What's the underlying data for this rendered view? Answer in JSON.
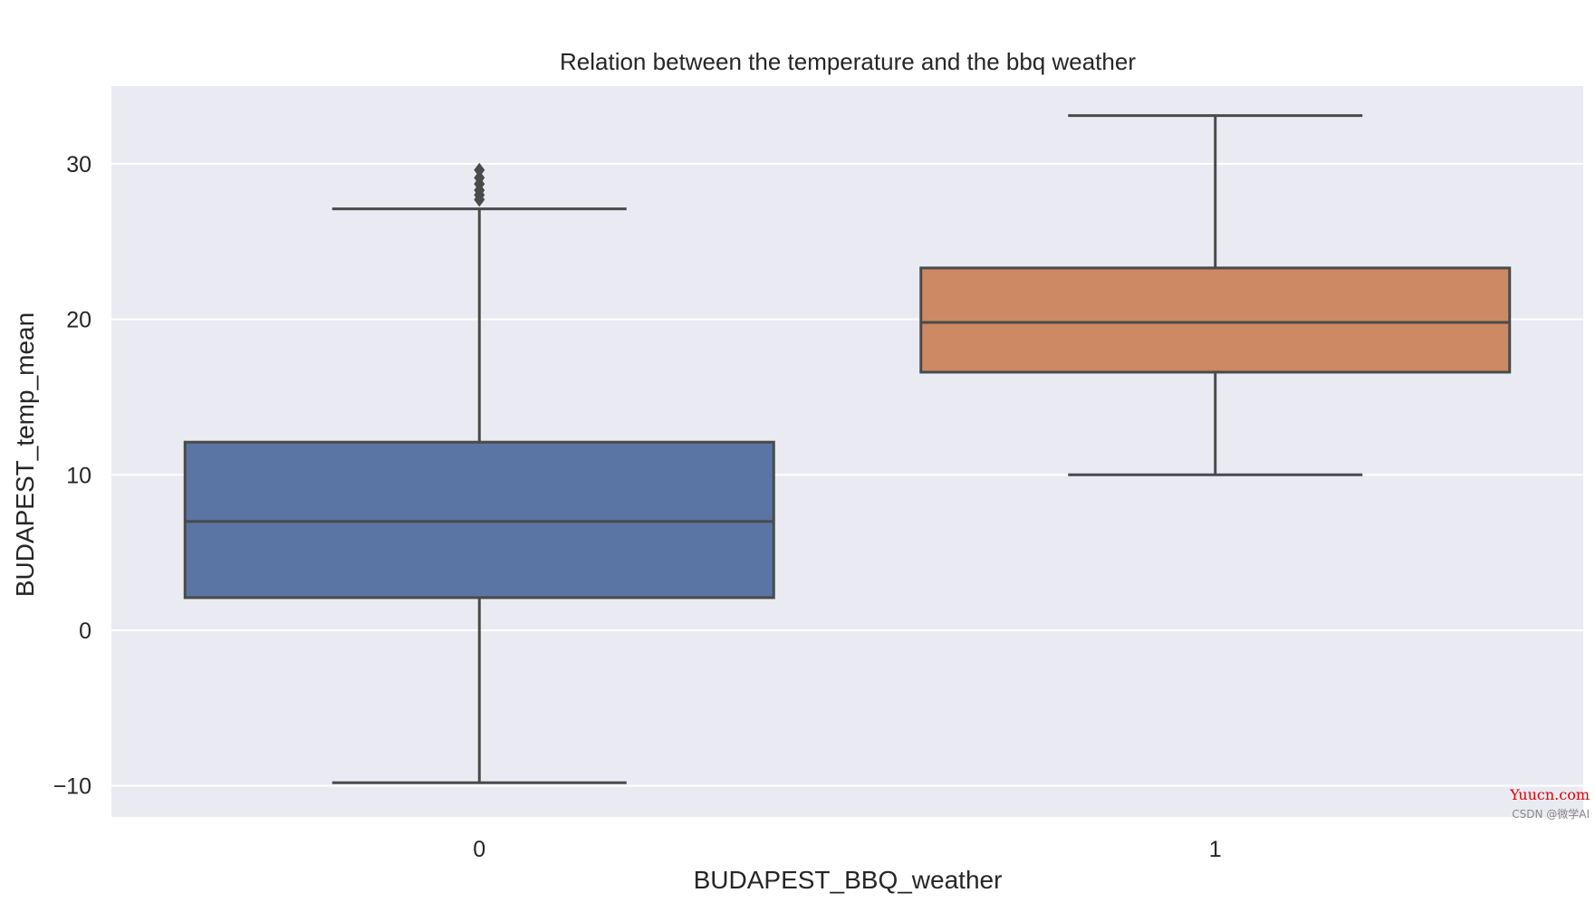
{
  "chart_data": {
    "type": "box",
    "title": "Relation between the temperature and the bbq weather",
    "xlabel": "BUDAPEST_BBQ_weather",
    "ylabel": "BUDAPEST_temp_mean",
    "categories": [
      "0",
      "1"
    ],
    "ylim": [
      -12,
      35
    ],
    "yticks": [
      -10,
      0,
      10,
      20,
      30
    ],
    "ytick_labels": [
      "−10",
      "0",
      "10",
      "20",
      "30"
    ],
    "grid": true,
    "boxes": [
      {
        "category": "0",
        "whisker_low": -9.8,
        "q1": 2.1,
        "median": 7.0,
        "q3": 12.1,
        "whisker_high": 27.1,
        "outliers": [
          27.7,
          28.0,
          28.3,
          28.7,
          29.1,
          29.6
        ],
        "color": "#5a74a4"
      },
      {
        "category": "1",
        "whisker_low": 10.0,
        "q1": 16.6,
        "median": 19.8,
        "q3": 23.3,
        "whisker_high": 33.1,
        "outliers": [],
        "color": "#cc8963"
      }
    ],
    "colors": {
      "background": "#eaeaf2",
      "grid": "#ffffff",
      "line": "#4a4a4a"
    }
  },
  "watermark": {
    "site": "Yuucn.com",
    "credit": "CSDN @微学AI"
  }
}
